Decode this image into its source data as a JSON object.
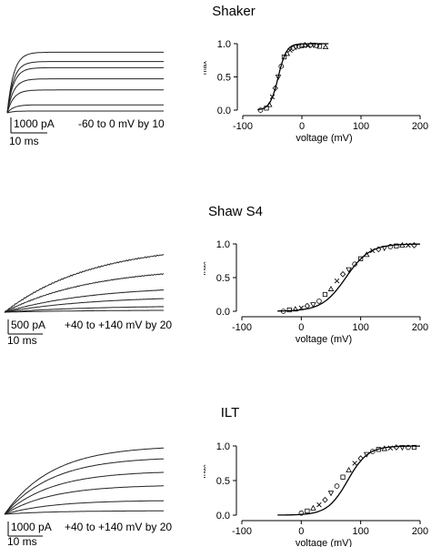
{
  "panels": [
    {
      "title": "Shaker",
      "trace_scale": {
        "current": "1000 pA",
        "time": "10 ms",
        "protocol": "-60 to 0 mV by 10"
      },
      "trace_rise": "fast",
      "trace_amplitudes": [
        0.03,
        0.13,
        0.37,
        0.55,
        0.73,
        0.83,
        0.98
      ]
    },
    {
      "title": "Shaw S4",
      "trace_scale": {
        "current": "500 pA",
        "time": "10 ms",
        "protocol": "+40 to +140 mV by 20"
      },
      "trace_rise": "slow",
      "trace_amplitudes": [
        0.03,
        0.09,
        0.22,
        0.36,
        0.62,
        0.93
      ]
    },
    {
      "title": "ILT",
      "trace_scale": {
        "current": "1000 pA",
        "time": "10 ms",
        "protocol": "+40 to +140 mV by 20"
      },
      "trace_rise": "medium",
      "trace_amplitudes": [
        0.05,
        0.2,
        0.42,
        0.62,
        0.82,
        0.98
      ]
    }
  ],
  "chart_data": [
    {
      "type": "scatter",
      "title": "Shaker",
      "xlabel": "voltage (mV)",
      "ylabel": "G/G",
      "ylabel_sub": "max",
      "xlim": [
        -100,
        200
      ],
      "ylim": [
        0,
        1
      ],
      "xticks": [
        -100,
        0,
        100,
        200
      ],
      "yticks": [
        0.0,
        0.5,
        1.0
      ],
      "xtick_labels": [
        "-100",
        "0",
        "100",
        "200"
      ],
      "ytick_labels": [
        "0.0",
        "0.5",
        "1.0"
      ],
      "fit": {
        "v_half": -40,
        "slope": 7
      },
      "x": [
        -70,
        -60,
        -55,
        -50,
        -45,
        -40,
        -35,
        -30,
        -25,
        -20,
        -15,
        -10,
        -5,
        0,
        5,
        10,
        15,
        20,
        25,
        30,
        40
      ],
      "y": [
        0.0,
        0.03,
        0.08,
        0.2,
        0.33,
        0.5,
        0.66,
        0.8,
        0.85,
        0.9,
        0.93,
        0.95,
        0.96,
        0.97,
        0.98,
        0.97,
        0.98,
        0.98,
        0.97,
        0.96,
        0.95
      ]
    },
    {
      "type": "scatter",
      "title": "Shaw S4",
      "xlabel": "voltage (mV)",
      "ylabel": "G/G",
      "ylabel_sub": "max",
      "xlim": [
        -100,
        200
      ],
      "ylim": [
        0,
        1
      ],
      "xticks": [
        -100,
        0,
        100,
        200
      ],
      "yticks": [
        0.0,
        0.5,
        1.0
      ],
      "xtick_labels": [
        "-100",
        "0",
        "100",
        "200"
      ],
      "ytick_labels": [
        "0.0",
        "0.5",
        "1.0"
      ],
      "fit": {
        "v_half": 75,
        "slope": 20
      },
      "x": [
        -30,
        -20,
        -10,
        0,
        10,
        20,
        30,
        40,
        50,
        60,
        70,
        80,
        90,
        100,
        110,
        120,
        130,
        140,
        150,
        160,
        170,
        180,
        190
      ],
      "y": [
        0.0,
        0.02,
        0.03,
        0.05,
        0.08,
        0.1,
        0.15,
        0.25,
        0.33,
        0.45,
        0.55,
        0.62,
        0.7,
        0.78,
        0.84,
        0.9,
        0.92,
        0.94,
        0.96,
        0.97,
        0.98,
        0.98,
        0.98
      ]
    },
    {
      "type": "scatter",
      "title": "ILT",
      "xlabel": "voltage (mV)",
      "ylabel": "G/G",
      "ylabel_sub": "max",
      "xlim": [
        -100,
        200
      ],
      "ylim": [
        0,
        1
      ],
      "xticks": [
        -100,
        0,
        100,
        200
      ],
      "yticks": [
        0.0,
        0.5,
        1.0
      ],
      "xtick_labels": [
        "-100",
        "0",
        "100",
        "200"
      ],
      "ytick_labels": [
        "0.0",
        "0.5",
        "1.0"
      ],
      "fit": {
        "v_half": 78,
        "slope": 17
      },
      "x": [
        0,
        10,
        20,
        30,
        40,
        50,
        60,
        70,
        80,
        90,
        100,
        110,
        120,
        130,
        140,
        150,
        160,
        170,
        180,
        190
      ],
      "y": [
        0.03,
        0.06,
        0.1,
        0.15,
        0.22,
        0.32,
        0.42,
        0.55,
        0.65,
        0.75,
        0.82,
        0.88,
        0.92,
        0.95,
        0.96,
        0.97,
        0.98,
        0.98,
        0.98,
        0.98
      ]
    }
  ]
}
